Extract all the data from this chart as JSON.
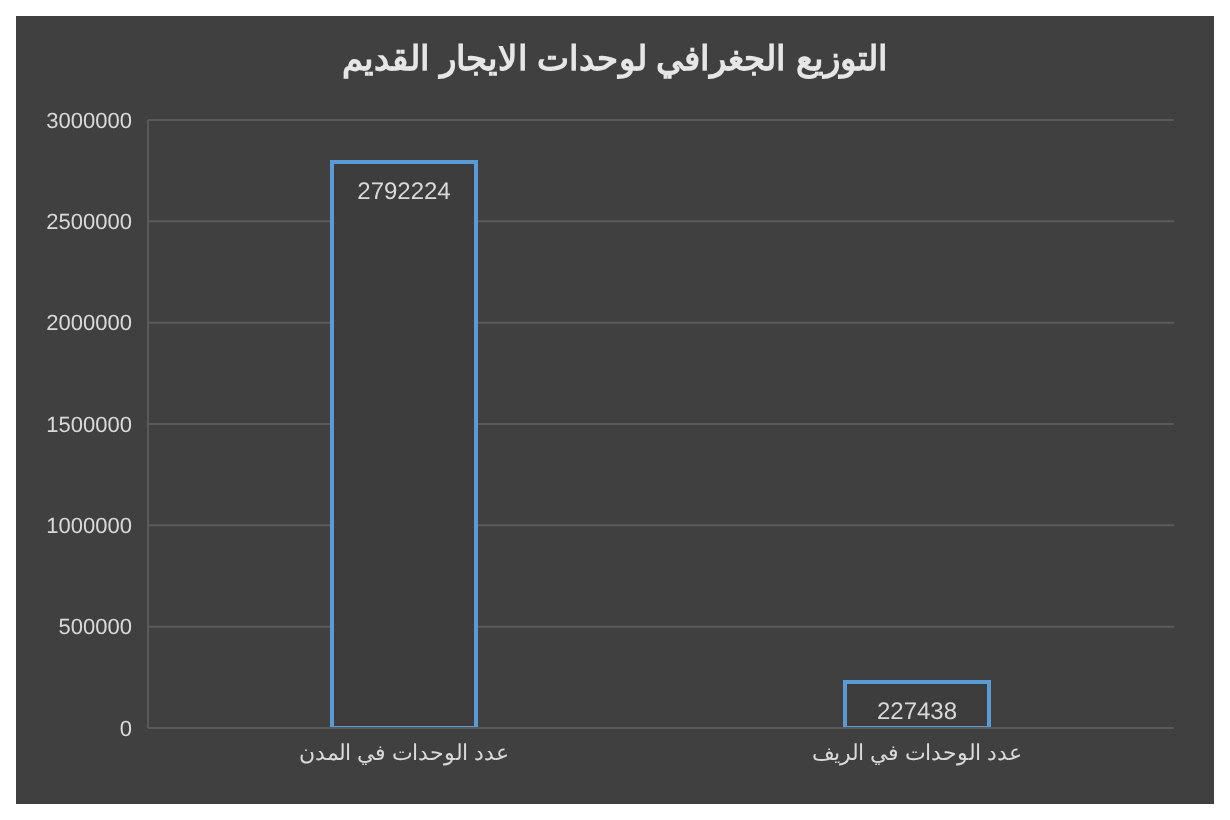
{
  "chart_data": {
    "type": "bar",
    "title": "التوزيع الجغرافي لوحدات الايجار القديم",
    "categories": [
      "عدد الوحدات في المدن",
      "عدد الوحدات في الريف"
    ],
    "values": [
      2792224,
      227438
    ],
    "color": "#5b9bd5",
    "ylim": [
      0,
      3000000
    ],
    "yticks": [
      0,
      500000,
      1000000,
      1500000,
      2000000,
      2500000,
      3000000
    ],
    "grid": "y",
    "data_labels": true
  }
}
